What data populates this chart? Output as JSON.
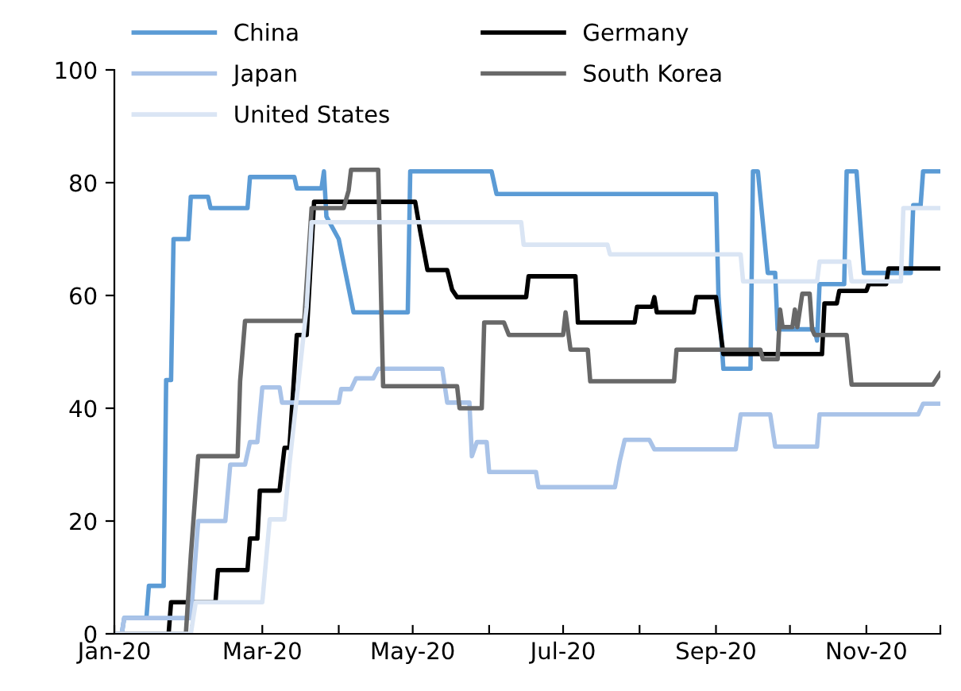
{
  "chart_data": {
    "type": "line",
    "xlim": [
      "2020-01-01",
      "2020-12-01"
    ],
    "xticks": [
      {
        "value": "2020-01-01",
        "label": "Jan-20"
      },
      {
        "value": "2020-02-01",
        "label": null
      },
      {
        "value": "2020-03-01",
        "label": "Mar-20"
      },
      {
        "value": "2020-04-01",
        "label": null
      },
      {
        "value": "2020-05-01",
        "label": "May-20"
      },
      {
        "value": "2020-06-01",
        "label": null
      },
      {
        "value": "2020-07-01",
        "label": "Jul-20"
      },
      {
        "value": "2020-08-01",
        "label": null
      },
      {
        "value": "2020-09-01",
        "label": "Sep-20"
      },
      {
        "value": "2020-10-01",
        "label": null
      },
      {
        "value": "2020-11-01",
        "label": "Nov-20"
      },
      {
        "value": "2020-12-01",
        "label": null
      }
    ],
    "ylim": [
      0,
      100
    ],
    "yticks": [
      0,
      20,
      40,
      60,
      80,
      100
    ],
    "grid": false,
    "legend": "top",
    "marker": "none",
    "line_style": "solid",
    "series": [
      {
        "name": "China",
        "color": "#5b9bd5",
        "x": [
          "2020-01-01",
          "2020-01-04",
          "2020-01-05",
          "2020-01-14",
          "2020-01-15",
          "2020-01-21",
          "2020-01-22",
          "2020-01-24",
          "2020-01-25",
          "2020-01-31",
          "2020-02-01",
          "2020-02-08",
          "2020-02-09",
          "2020-02-24",
          "2020-02-25",
          "2020-03-14",
          "2020-03-15",
          "2020-03-25",
          "2020-03-26",
          "2020-03-27",
          "2020-04-01",
          "2020-04-07",
          "2020-04-29",
          "2020-04-30",
          "2020-06-02",
          "2020-06-04",
          "2020-09-01",
          "2020-09-02",
          "2020-09-04",
          "2020-09-15",
          "2020-09-16",
          "2020-09-18",
          "2020-09-22",
          "2020-09-25",
          "2020-09-26",
          "2020-10-11",
          "2020-10-12",
          "2020-10-13",
          "2020-10-23",
          "2020-10-24",
          "2020-10-28",
          "2020-10-31",
          "2020-11-19",
          "2020-11-20",
          "2020-11-23",
          "2020-11-24",
          "2020-12-01"
        ],
        "values": [
          0,
          0,
          2.8,
          2.8,
          8.5,
          8.5,
          45,
          45,
          70,
          70,
          77.5,
          77.5,
          75.5,
          75.5,
          81,
          81,
          79,
          79,
          82,
          74,
          70,
          57,
          57,
          82,
          82,
          78,
          78,
          60,
          47,
          47,
          82,
          82,
          64,
          64,
          54,
          54,
          52,
          62,
          62,
          82,
          82,
          64,
          64,
          76,
          76,
          82,
          82
        ]
      },
      {
        "name": "Germany",
        "color": "#000000",
        "x": [
          "2020-01-01",
          "2020-01-23",
          "2020-01-24",
          "2020-02-11",
          "2020-02-12",
          "2020-02-24",
          "2020-02-25",
          "2020-02-28",
          "2020-02-29",
          "2020-03-08",
          "2020-03-10",
          "2020-03-12",
          "2020-03-15",
          "2020-03-19",
          "2020-03-22",
          "2020-05-02",
          "2020-05-04",
          "2020-05-07",
          "2020-05-15",
          "2020-05-17",
          "2020-05-19",
          "2020-06-16",
          "2020-06-17",
          "2020-07-06",
          "2020-07-07",
          "2020-07-30",
          "2020-07-31",
          "2020-08-06",
          "2020-08-07",
          "2020-08-08",
          "2020-08-23",
          "2020-08-24",
          "2020-09-01",
          "2020-09-04",
          "2020-10-14",
          "2020-10-15",
          "2020-10-20",
          "2020-10-21",
          "2020-11-01",
          "2020-11-02",
          "2020-11-09",
          "2020-11-10",
          "2020-12-01"
        ],
        "values": [
          0,
          0,
          5.6,
          5.6,
          11.3,
          11.3,
          16.9,
          16.9,
          25.4,
          25.4,
          33,
          33,
          53,
          53,
          76.6,
          76.6,
          71.5,
          64.5,
          64.5,
          61,
          59.7,
          59.7,
          63.4,
          63.4,
          55.2,
          55.2,
          58,
          58,
          59.7,
          57,
          57,
          59.7,
          59.7,
          49.6,
          49.6,
          58.6,
          58.6,
          60.8,
          60.8,
          62,
          62,
          64.8,
          64.8
        ]
      },
      {
        "name": "Japan",
        "color": "#a9c3e8",
        "x": [
          "2020-01-01",
          "2020-01-04",
          "2020-01-05",
          "2020-02-01",
          "2020-02-04",
          "2020-02-15",
          "2020-02-17",
          "2020-02-23",
          "2020-02-25",
          "2020-02-28",
          "2020-03-01",
          "2020-03-08",
          "2020-03-09",
          "2020-04-01",
          "2020-04-02",
          "2020-04-06",
          "2020-04-08",
          "2020-04-15",
          "2020-04-17",
          "2020-05-13",
          "2020-05-15",
          "2020-05-24",
          "2020-05-25",
          "2020-05-27",
          "2020-05-31",
          "2020-06-01",
          "2020-06-20",
          "2020-06-21",
          "2020-07-22",
          "2020-07-24",
          "2020-07-26",
          "2020-08-05",
          "2020-08-07",
          "2020-09-09",
          "2020-09-11",
          "2020-09-23",
          "2020-09-25",
          "2020-10-12",
          "2020-10-13",
          "2020-11-22",
          "2020-11-24",
          "2020-12-01"
        ],
        "values": [
          0,
          0,
          2.8,
          2.8,
          20,
          20,
          30,
          30,
          34,
          34,
          43.7,
          43.7,
          41,
          41,
          43.4,
          43.4,
          45.3,
          45.3,
          47,
          47,
          41,
          41,
          31.5,
          34,
          34,
          28.7,
          28.7,
          26,
          26,
          30.7,
          34.4,
          34.4,
          32.7,
          32.7,
          38.9,
          38.9,
          33.2,
          33.2,
          38.9,
          38.9,
          40.8,
          40.8
        ]
      },
      {
        "name": "South Korea",
        "color": "#686868",
        "x": [
          "2020-01-01",
          "2020-01-30",
          "2020-02-01",
          "2020-02-04",
          "2020-02-20",
          "2020-02-21",
          "2020-02-23",
          "2020-03-18",
          "2020-03-21",
          "2020-04-03",
          "2020-04-05",
          "2020-04-06",
          "2020-04-17",
          "2020-04-19",
          "2020-05-19",
          "2020-05-20",
          "2020-05-29",
          "2020-05-30",
          "2020-06-07",
          "2020-06-09",
          "2020-07-01",
          "2020-07-02",
          "2020-07-04",
          "2020-07-11",
          "2020-07-12",
          "2020-08-15",
          "2020-08-16",
          "2020-09-19",
          "2020-09-20",
          "2020-09-26",
          "2020-09-27",
          "2020-09-28",
          "2020-10-02",
          "2020-10-03",
          "2020-10-04",
          "2020-10-06",
          "2020-10-09",
          "2020-10-10",
          "2020-10-11",
          "2020-10-24",
          "2020-10-26",
          "2020-11-28",
          "2020-12-01"
        ],
        "values": [
          0,
          0,
          13.8,
          31.5,
          31.5,
          44.8,
          55.5,
          55.5,
          75.5,
          75.5,
          78.6,
          82.3,
          82.3,
          43.9,
          43.9,
          40,
          40,
          55.2,
          55.2,
          53,
          53,
          57,
          50.4,
          50.4,
          44.8,
          44.8,
          50.4,
          50.4,
          48.7,
          48.7,
          57.5,
          54.4,
          54.4,
          57.5,
          54.4,
          60.3,
          60.3,
          54,
          53,
          53,
          44.2,
          44.2,
          46.2
        ]
      },
      {
        "name": "United States",
        "color": "#dae5f4",
        "x": [
          "2020-01-01",
          "2020-02-01",
          "2020-02-03",
          "2020-03-01",
          "2020-03-04",
          "2020-03-10",
          "2020-03-12",
          "2020-03-17",
          "2020-03-19",
          "2020-03-21",
          "2020-06-14",
          "2020-06-15",
          "2020-07-19",
          "2020-07-20",
          "2020-09-11",
          "2020-09-12",
          "2020-10-12",
          "2020-10-13",
          "2020-10-25",
          "2020-10-26",
          "2020-11-15",
          "2020-11-16",
          "2020-12-01"
        ],
        "values": [
          0,
          0,
          5.6,
          5.6,
          20.3,
          20.3,
          30,
          50,
          58,
          73,
          73,
          69,
          69,
          67.3,
          67.3,
          62.5,
          62.5,
          66,
          66,
          62.5,
          62.5,
          75.5,
          75.5
        ]
      }
    ]
  }
}
